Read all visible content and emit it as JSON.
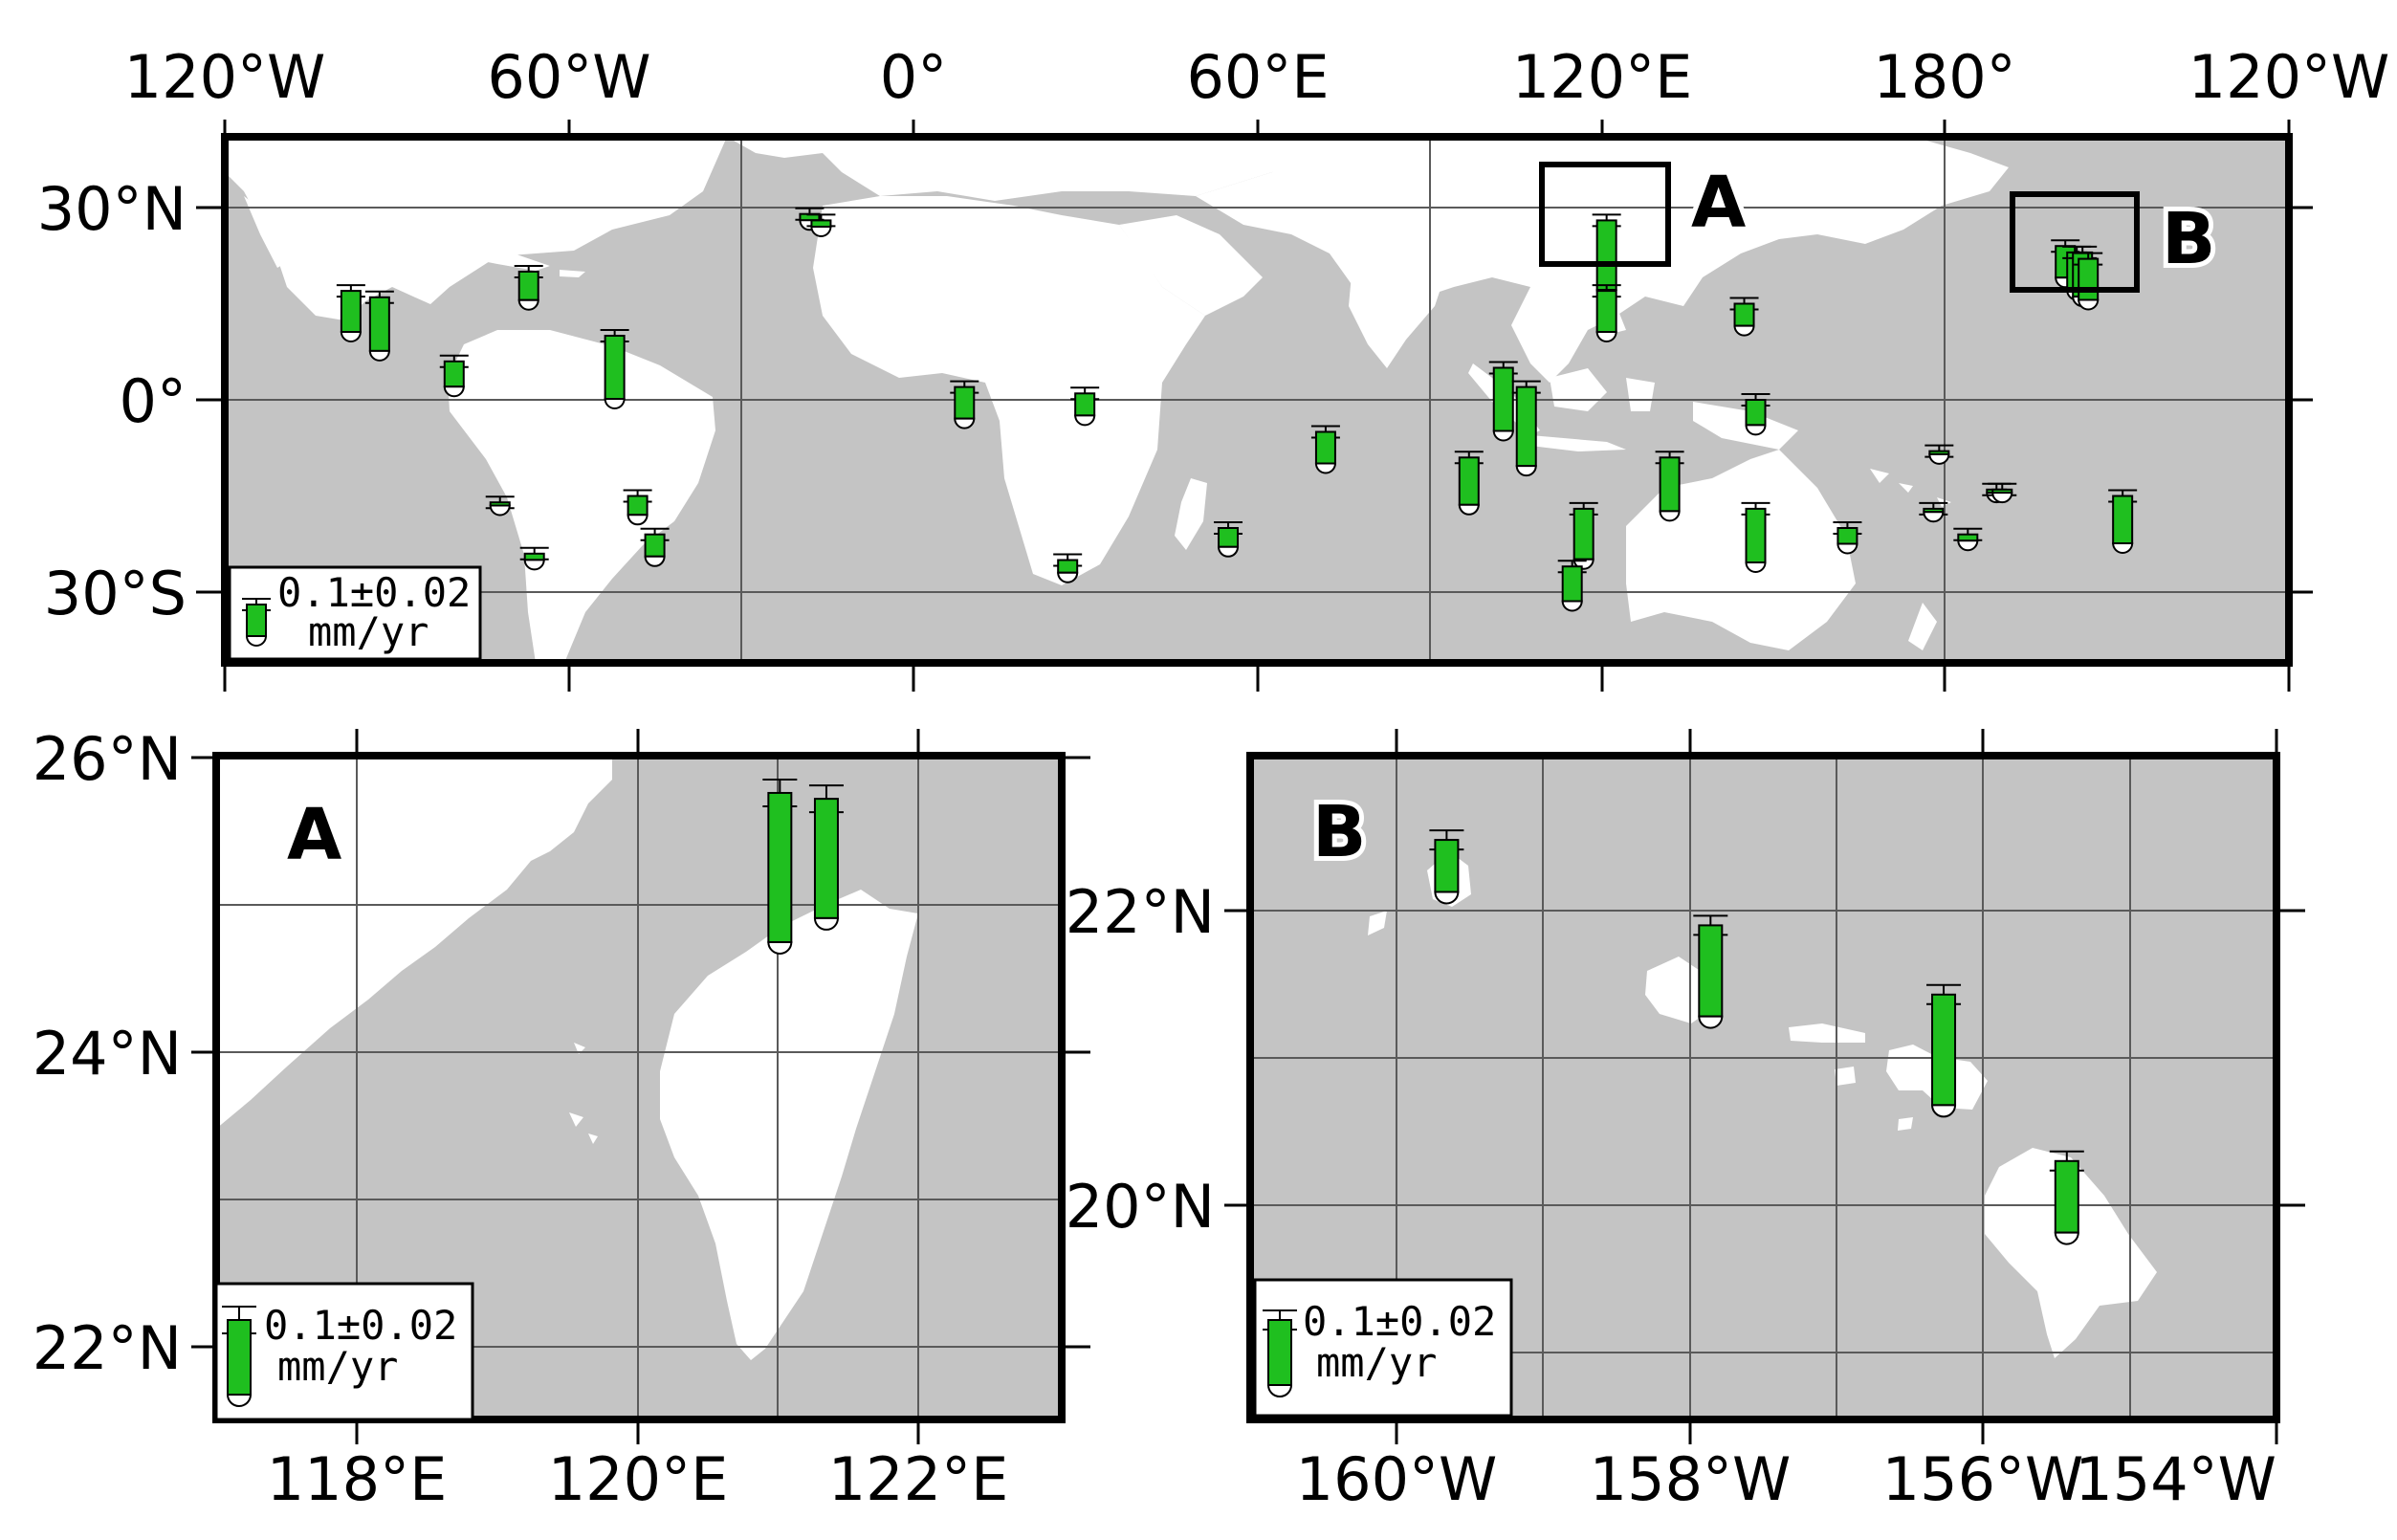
{
  "figure": {
    "colors": {
      "ocean": "#c4c4c4",
      "land": "#ffffff",
      "bar": "#1fbf1f",
      "frame": "#000000",
      "grid": "#5a5a5a"
    }
  },
  "panels": {
    "main": {
      "xticks": [
        "120°W",
        "60°W",
        "0°",
        "60°E",
        "120°E",
        "180°",
        "120°W"
      ],
      "yticks": [
        "30°N",
        "0°",
        "30°S"
      ],
      "inset_labels": [
        "A",
        "B"
      ],
      "legend": {
        "value": "0.1±0.02",
        "unit": "mm/yr"
      }
    },
    "A": {
      "label": "A",
      "xticks": [
        "118°E",
        "120°E",
        "122°E"
      ],
      "yticks": [
        "26°N",
        "24°N",
        "22°N"
      ],
      "legend": {
        "value": "0.1±0.02",
        "unit": "mm/yr"
      }
    },
    "B": {
      "label": "B",
      "xticks": [
        "160°W",
        "158°W",
        "156°W",
        "154°W"
      ],
      "yticks": [
        "22°N",
        "20°N"
      ],
      "legend": {
        "value": "0.1±0.02",
        "unit": "mm/yr"
      }
    }
  },
  "stations": {
    "legend_rate_mm_yr": 0.1,
    "main": [
      {
        "lon": -98,
        "lat": 17,
        "rate": 0.13
      },
      {
        "lon": -93,
        "lat": 16,
        "rate": 0.17
      },
      {
        "lon": -67,
        "lat": 20,
        "rate": 0.09
      },
      {
        "lon": -80,
        "lat": 6,
        "rate": 0.08
      },
      {
        "lon": -52,
        "lat": 10,
        "rate": 0.2
      },
      {
        "lon": -72,
        "lat": -16,
        "rate": 0.01
      },
      {
        "lon": -66,
        "lat": -24,
        "rate": 0.02
      },
      {
        "lon": -48,
        "lat": -15,
        "rate": 0.06
      },
      {
        "lon": -45,
        "lat": -21,
        "rate": 0.07
      },
      {
        "lon": -18,
        "lat": 29,
        "rate": 0.02
      },
      {
        "lon": -16,
        "lat": 28,
        "rate": 0.02
      },
      {
        "lon": 9,
        "lat": 2,
        "rate": 0.1
      },
      {
        "lon": 30,
        "lat": 1,
        "rate": 0.07
      },
      {
        "lon": 27,
        "lat": -25,
        "rate": 0.04
      },
      {
        "lon": 55,
        "lat": -20,
        "rate": 0.06
      },
      {
        "lon": 72,
        "lat": -5,
        "rate": 0.1
      },
      {
        "lon": 97,
        "lat": -9,
        "rate": 0.15
      },
      {
        "lon": 103,
        "lat": 5,
        "rate": 0.2
      },
      {
        "lon": 107,
        "lat": 2,
        "rate": 0.25
      },
      {
        "lon": 117,
        "lat": -17,
        "rate": 0.16
      },
      {
        "lon": 115,
        "lat": -26,
        "rate": 0.11
      },
      {
        "lon": 121,
        "lat": 28,
        "rate": 0.22
      },
      {
        "lon": 121,
        "lat": 17,
        "rate": 0.13
      },
      {
        "lon": 132,
        "lat": -9,
        "rate": 0.17
      },
      {
        "lon": 145,
        "lat": 15,
        "rate": 0.07
      },
      {
        "lon": 147,
        "lat": 0,
        "rate": 0.08
      },
      {
        "lon": 147,
        "lat": -17,
        "rate": 0.17
      },
      {
        "lon": 163,
        "lat": -20,
        "rate": 0.05
      },
      {
        "lon": 179,
        "lat": -8,
        "rate": 0.01
      },
      {
        "lon": 178,
        "lat": -17,
        "rate": 0.01
      },
      {
        "lon": 184,
        "lat": -21,
        "rate": 0.02
      },
      {
        "lon": 189,
        "lat": -14,
        "rate": 0.01
      },
      {
        "lon": 190,
        "lat": -14,
        "rate": 0.01
      },
      {
        "lon": 211,
        "lat": -15,
        "rate": 0.15
      },
      {
        "lon": 201,
        "lat": 24,
        "rate": 0.1
      },
      {
        "lon": 203,
        "lat": 23,
        "rate": 0.12
      },
      {
        "lon": 204,
        "lat": 23,
        "rate": 0.14
      },
      {
        "lon": 205,
        "lat": 22,
        "rate": 0.13
      }
    ],
    "A": [
      {
        "lon": 121.0,
        "lat": 25.76,
        "rate": 0.2
      },
      {
        "lon": 121.33,
        "lat": 25.72,
        "rate": 0.16
      }
    ],
    "B": [
      {
        "lon": -159.66,
        "lat": 22.48,
        "rate": 0.08
      },
      {
        "lon": -157.86,
        "lat": 21.9,
        "rate": 0.14
      },
      {
        "lon": -156.27,
        "lat": 21.43,
        "rate": 0.17
      },
      {
        "lon": -155.43,
        "lat": 20.3,
        "rate": 0.11
      }
    ]
  }
}
